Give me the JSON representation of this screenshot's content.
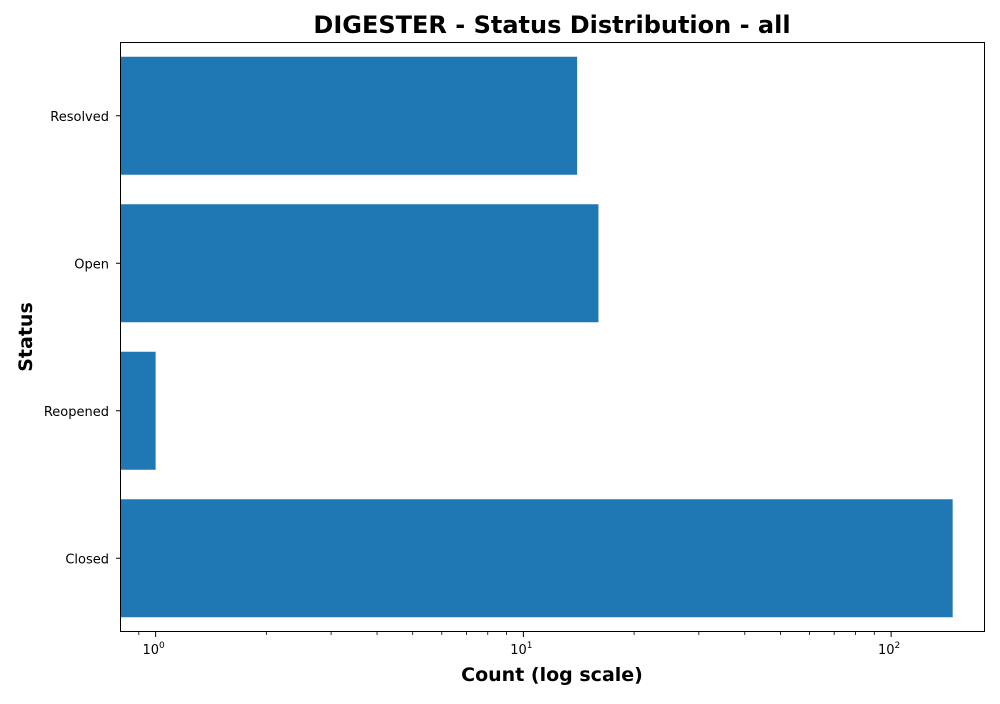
{
  "chart_data": {
    "type": "bar",
    "orientation": "horizontal",
    "title": "DIGESTER - Status Distribution - all",
    "xlabel": "Count (log scale)",
    "ylabel": "Status",
    "x_scale": "log",
    "xlim": [
      0.8,
      180
    ],
    "x_ticks": [
      {
        "value": 1,
        "base": "10",
        "exp": "0"
      },
      {
        "value": 10,
        "base": "10",
        "exp": "1"
      },
      {
        "value": 100,
        "base": "10",
        "exp": "2"
      }
    ],
    "categories": [
      "Resolved",
      "Open",
      "Reopened",
      "Closed"
    ],
    "values": [
      14,
      16,
      1,
      147
    ],
    "bar_color": "#1f77b4",
    "grid": false,
    "legend": "none"
  }
}
